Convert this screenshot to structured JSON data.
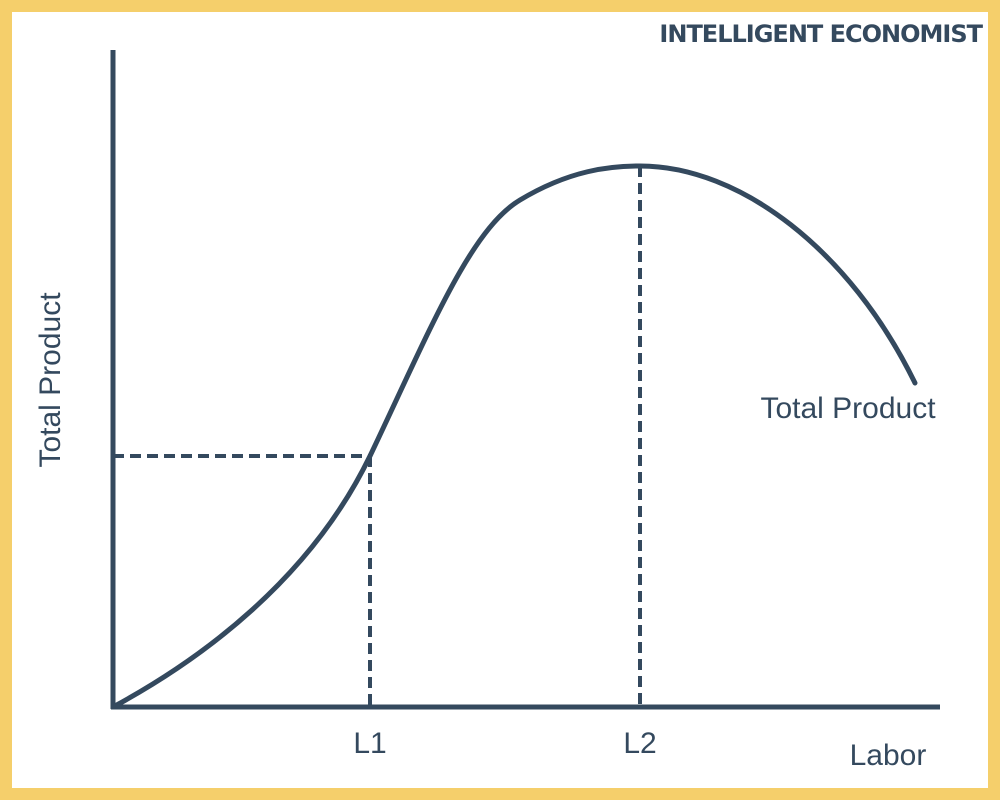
{
  "brand": "INTELLIGENT ECONOMIST",
  "axes": {
    "y_label": "Total Product",
    "x_label": "Labor"
  },
  "curve": {
    "label": "Total Product"
  },
  "markers": [
    "L1",
    "L2"
  ]
}
